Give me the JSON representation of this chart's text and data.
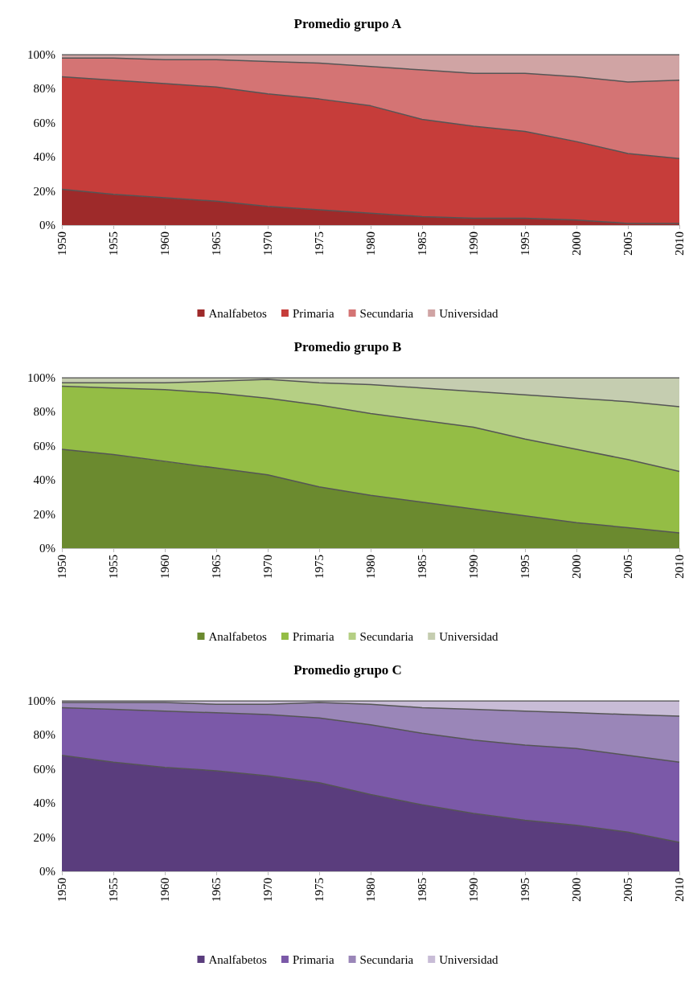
{
  "chart_data": [
    {
      "type": "area",
      "title": "Promedio grupo A",
      "stacked": true,
      "grid": false,
      "legend": "bottom",
      "marker": "none",
      "categories": [
        "1950",
        "1955",
        "1960",
        "1965",
        "1970",
        "1975",
        "1980",
        "1985",
        "1990",
        "1995",
        "2000",
        "2005",
        "2010"
      ],
      "ylim": [
        0,
        100
      ],
      "yticks": [
        {
          "value": 0,
          "label": "0%"
        },
        {
          "value": 20,
          "label": "20%"
        },
        {
          "value": 40,
          "label": "40%"
        },
        {
          "value": 60,
          "label": "60%"
        },
        {
          "value": 80,
          "label": "80%"
        },
        {
          "value": 100,
          "label": "100%"
        }
      ],
      "series": [
        {
          "name": "Analfabetos",
          "color": "#9e2a2a",
          "values": [
            21,
            18,
            16,
            14,
            11,
            9,
            7,
            5,
            4,
            4,
            3,
            1,
            1
          ]
        },
        {
          "name": "Primaria",
          "color": "#c63d3a",
          "values": [
            66,
            67,
            67,
            67,
            66,
            65,
            63,
            57,
            54,
            51,
            46,
            41,
            38
          ]
        },
        {
          "name": "Secundaria",
          "color": "#d47474",
          "values": [
            11,
            13,
            14,
            16,
            19,
            21,
            23,
            29,
            31,
            34,
            38,
            42,
            46
          ]
        },
        {
          "name": "Universidad",
          "color": "#d0a4a4",
          "values": [
            2,
            2,
            3,
            3,
            4,
            5,
            7,
            9,
            11,
            11,
            13,
            16,
            15
          ]
        }
      ]
    },
    {
      "type": "area",
      "title": "Promedio grupo B",
      "stacked": true,
      "grid": false,
      "legend": "bottom",
      "marker": "none",
      "categories": [
        "1950",
        "1955",
        "1960",
        "1965",
        "1970",
        "1975",
        "1980",
        "1985",
        "1990",
        "1995",
        "2000",
        "2005",
        "2010"
      ],
      "ylim": [
        0,
        100
      ],
      "yticks": [
        {
          "value": 0,
          "label": "0%"
        },
        {
          "value": 20,
          "label": "20%"
        },
        {
          "value": 40,
          "label": "40%"
        },
        {
          "value": 60,
          "label": "60%"
        },
        {
          "value": 80,
          "label": "80%"
        },
        {
          "value": 100,
          "label": "100%"
        }
      ],
      "series": [
        {
          "name": "Analfabetos",
          "color": "#6b8a2f",
          "values": [
            58,
            55,
            51,
            47,
            43,
            36,
            31,
            27,
            23,
            19,
            15,
            12,
            9
          ]
        },
        {
          "name": "Primaria",
          "color": "#94bd45",
          "values": [
            37,
            39,
            42,
            44,
            45,
            48,
            48,
            48,
            48,
            45,
            43,
            40,
            36
          ]
        },
        {
          "name": "Secundaria",
          "color": "#b5cf84",
          "values": [
            2,
            3,
            4,
            7,
            11,
            13,
            17,
            19,
            21,
            26,
            30,
            34,
            38
          ]
        },
        {
          "name": "Universidad",
          "color": "#c5cdb0",
          "values": [
            3,
            3,
            3,
            2,
            1,
            3,
            4,
            6,
            8,
            10,
            12,
            14,
            17
          ]
        }
      ]
    },
    {
      "type": "area",
      "title": "Promedio grupo C",
      "stacked": true,
      "grid": false,
      "legend": "bottom",
      "marker": "none",
      "categories": [
        "1950",
        "1955",
        "1960",
        "1965",
        "1970",
        "1975",
        "1980",
        "1985",
        "1990",
        "1995",
        "2000",
        "2005",
        "2010"
      ],
      "ylim": [
        0,
        100
      ],
      "yticks": [
        {
          "value": 0,
          "label": "0%"
        },
        {
          "value": 20,
          "label": "20%"
        },
        {
          "value": 40,
          "label": "40%"
        },
        {
          "value": 60,
          "label": "60%"
        },
        {
          "value": 80,
          "label": "80%"
        },
        {
          "value": 100,
          "label": "100%"
        }
      ],
      "series": [
        {
          "name": "Analfabetos",
          "color": "#5a3d7d",
          "values": [
            68,
            64,
            61,
            59,
            56,
            52,
            45,
            39,
            34,
            30,
            27,
            23,
            17
          ]
        },
        {
          "name": "Primaria",
          "color": "#7b59a8",
          "values": [
            28,
            31,
            33,
            34,
            36,
            38,
            41,
            42,
            43,
            44,
            45,
            45,
            47
          ]
        },
        {
          "name": "Secundaria",
          "color": "#9a86b8",
          "values": [
            3,
            4,
            5,
            5,
            6,
            9,
            12,
            15,
            18,
            20,
            21,
            24,
            27
          ]
        },
        {
          "name": "Universidad",
          "color": "#c8bcd6",
          "values": [
            1,
            1,
            1,
            2,
            2,
            1,
            2,
            4,
            5,
            6,
            7,
            8,
            9
          ]
        }
      ]
    }
  ]
}
